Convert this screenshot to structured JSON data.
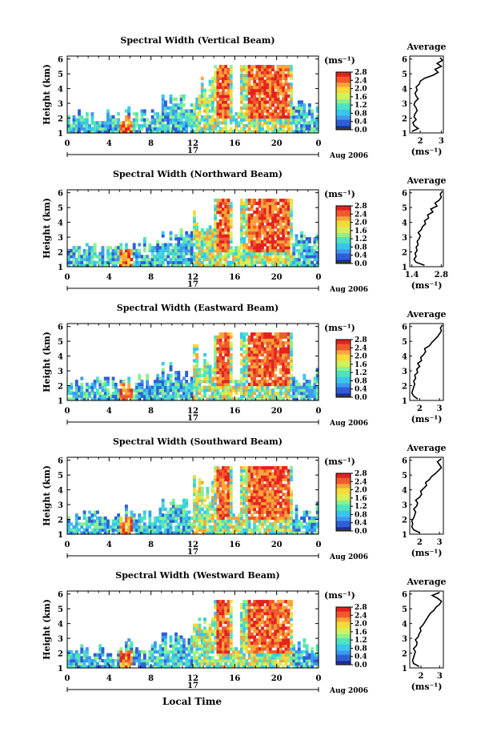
{
  "figure": {
    "xlabel": "Local Time",
    "date_label": "Aug 2006",
    "day_label": "17"
  },
  "colors": {
    "map": [
      "#3b3b3b",
      "#1c2d9c",
      "#2f5fd6",
      "#3f97f0",
      "#39c6ee",
      "#4ee3c0",
      "#8df08f",
      "#d3f15a",
      "#f6d93b",
      "#f7a63b",
      "#f05a2e",
      "#e32220"
    ]
  },
  "chart_data": [
    {
      "type": "heatmap",
      "title": "Spectral Width (Vertical Beam)",
      "ylabel": "Height (km)",
      "unit_label": "(ms⁻¹)",
      "x_ticks": [
        "0",
        "4",
        "8",
        "12",
        "16",
        "20",
        "0"
      ],
      "xlim": [
        0,
        24
      ],
      "y_ticks": [
        "1",
        "2",
        "3",
        "4",
        "5",
        "6"
      ],
      "ylim": [
        1,
        6.2
      ],
      "colorbar_ticks": [
        "0.0",
        "0.4",
        "0.8",
        "1.2",
        "1.6",
        "2.0",
        "2.4",
        "2.8"
      ],
      "colorbar_range": [
        0,
        2.8
      ],
      "profile": {
        "title": "Average",
        "x_ticks": [
          "2",
          "3"
        ],
        "xlim": [
          1.5,
          3.1
        ],
        "xlabel": "(ms⁻¹)",
        "heights": [
          1.1,
          1.3,
          1.5,
          1.7,
          1.9,
          2.1,
          2.3,
          2.5,
          2.7,
          2.9,
          3.1,
          3.3,
          3.5,
          3.7,
          3.9,
          4.1,
          4.3,
          4.5,
          4.7,
          4.9,
          5.1,
          5.3,
          5.5,
          5.7,
          5.9,
          6.1
        ],
        "values": [
          1.6,
          1.9,
          1.7,
          1.65,
          1.8,
          1.7,
          1.75,
          1.85,
          1.8,
          1.7,
          1.75,
          1.9,
          1.8,
          1.75,
          1.85,
          1.8,
          1.95,
          2.0,
          2.2,
          2.6,
          2.85,
          2.7,
          3.0,
          2.8,
          3.05,
          2.95
        ]
      }
    },
    {
      "type": "heatmap",
      "title": "Spectral Width (Northward Beam)",
      "ylabel": "Height (km)",
      "unit_label": "(ms⁻¹)",
      "x_ticks": [
        "0",
        "4",
        "8",
        "12",
        "16",
        "20",
        "0"
      ],
      "xlim": [
        0,
        24
      ],
      "y_ticks": [
        "1",
        "2",
        "3",
        "4",
        "5",
        "6"
      ],
      "ylim": [
        1,
        6.2
      ],
      "colorbar_ticks": [
        "0.0",
        "0.4",
        "0.8",
        "1.2",
        "1.6",
        "2.0",
        "2.4",
        "2.8"
      ],
      "colorbar_range": [
        0,
        2.8
      ],
      "profile": {
        "title": "Average",
        "x_ticks": [
          "1.4",
          "2.8"
        ],
        "xlim": [
          1.3,
          2.9
        ],
        "xlabel": "(ms⁻¹)",
        "heights": [
          1.1,
          1.3,
          1.5,
          1.7,
          1.9,
          2.1,
          2.3,
          2.5,
          2.7,
          2.9,
          3.1,
          3.3,
          3.5,
          3.7,
          3.9,
          4.1,
          4.3,
          4.5,
          4.7,
          4.9,
          5.1,
          5.3,
          5.5,
          5.7,
          5.9,
          6.1
        ],
        "values": [
          2.0,
          1.6,
          1.5,
          1.6,
          1.55,
          1.65,
          1.6,
          1.7,
          1.65,
          1.75,
          1.8,
          1.7,
          1.85,
          1.9,
          2.05,
          2.0,
          2.2,
          2.15,
          2.4,
          2.3,
          2.6,
          2.5,
          2.7,
          2.8,
          2.75,
          2.85
        ]
      }
    },
    {
      "type": "heatmap",
      "title": "Spectral Width (Eastward Beam)",
      "ylabel": "Height (km)",
      "unit_label": "(ms⁻¹)",
      "x_ticks": [
        "0",
        "4",
        "8",
        "12",
        "16",
        "20",
        "0"
      ],
      "xlim": [
        0,
        24
      ],
      "y_ticks": [
        "1",
        "2",
        "3",
        "4",
        "5",
        "6"
      ],
      "ylim": [
        1,
        6.2
      ],
      "colorbar_ticks": [
        "0.0",
        "0.4",
        "0.8",
        "1.2",
        "1.6",
        "2.0",
        "2.4",
        "2.8"
      ],
      "colorbar_range": [
        0,
        2.8
      ],
      "profile": {
        "title": "Average",
        "x_ticks": [
          "2",
          "3"
        ],
        "xlim": [
          1.5,
          3.2
        ],
        "xlabel": "(ms⁻¹)",
        "heights": [
          1.1,
          1.3,
          1.5,
          1.7,
          1.9,
          2.1,
          2.3,
          2.5,
          2.7,
          2.9,
          3.1,
          3.3,
          3.5,
          3.7,
          3.9,
          4.1,
          4.3,
          4.5,
          4.7,
          4.9,
          5.1,
          5.3,
          5.5,
          5.7,
          5.9,
          6.1
        ],
        "values": [
          1.9,
          1.7,
          1.6,
          1.65,
          1.7,
          1.75,
          1.7,
          1.8,
          1.75,
          1.9,
          1.85,
          2.0,
          1.9,
          2.1,
          2.05,
          2.2,
          2.3,
          2.25,
          2.5,
          2.6,
          2.75,
          2.9,
          3.0,
          3.1,
          3.05,
          3.15
        ]
      }
    },
    {
      "type": "heatmap",
      "title": "Spectral Width (Southward Beam)",
      "ylabel": "Height (km)",
      "unit_label": "(ms⁻¹)",
      "x_ticks": [
        "0",
        "4",
        "8",
        "12",
        "16",
        "20",
        "0"
      ],
      "xlim": [
        0,
        24
      ],
      "y_ticks": [
        "1",
        "2",
        "3",
        "4",
        "5",
        "6"
      ],
      "ylim": [
        1,
        6.2
      ],
      "colorbar_ticks": [
        "0.0",
        "0.4",
        "0.8",
        "1.2",
        "1.6",
        "2.0",
        "2.4",
        "2.8"
      ],
      "colorbar_range": [
        0,
        2.8
      ],
      "profile": {
        "title": "Average",
        "x_ticks": [
          "2",
          "3"
        ],
        "xlim": [
          1.5,
          3.2
        ],
        "xlabel": "(ms⁻¹)",
        "heights": [
          1.1,
          1.3,
          1.5,
          1.7,
          1.9,
          2.1,
          2.3,
          2.5,
          2.7,
          2.9,
          3.1,
          3.3,
          3.5,
          3.7,
          3.9,
          4.1,
          4.3,
          4.5,
          4.7,
          4.9,
          5.1,
          5.3,
          5.5,
          5.7,
          5.9,
          6.1
        ],
        "values": [
          2.0,
          1.7,
          1.6,
          1.65,
          1.6,
          1.7,
          1.75,
          1.8,
          1.7,
          1.85,
          1.9,
          1.8,
          2.0,
          2.1,
          2.05,
          2.2,
          2.35,
          2.3,
          2.5,
          2.6,
          2.8,
          2.95,
          3.1,
          3.0,
          2.9,
          3.1
        ]
      }
    },
    {
      "type": "heatmap",
      "title": "Spectral Width (Westward Beam)",
      "ylabel": "Height (km)",
      "unit_label": "(ms⁻¹)",
      "x_ticks": [
        "0",
        "4",
        "8",
        "12",
        "16",
        "20",
        "0"
      ],
      "xlim": [
        0,
        24
      ],
      "y_ticks": [
        "1",
        "2",
        "3",
        "4",
        "5",
        "6"
      ],
      "ylim": [
        1,
        6.2
      ],
      "colorbar_ticks": [
        "0.0",
        "0.4",
        "0.8",
        "1.2",
        "1.6",
        "2.0",
        "2.4",
        "2.8"
      ],
      "colorbar_range": [
        0,
        2.8
      ],
      "profile": {
        "title": "Average",
        "x_ticks": [
          "2",
          "3"
        ],
        "xlim": [
          1.4,
          3.2
        ],
        "xlabel": "(ms⁻¹)",
        "heights": [
          1.1,
          1.3,
          1.5,
          1.7,
          1.9,
          2.1,
          2.3,
          2.5,
          2.7,
          2.9,
          3.1,
          3.3,
          3.5,
          3.7,
          3.9,
          4.1,
          4.3,
          4.5,
          4.7,
          4.9,
          5.1,
          5.3,
          5.5,
          5.7,
          5.9,
          6.1
        ],
        "values": [
          1.9,
          1.6,
          1.55,
          1.6,
          1.65,
          1.7,
          1.6,
          1.75,
          1.8,
          1.7,
          1.85,
          1.9,
          2.0,
          1.95,
          2.1,
          2.2,
          2.3,
          2.4,
          2.5,
          2.7,
          2.8,
          3.0,
          3.1,
          2.9,
          2.6,
          3.0
        ]
      }
    }
  ]
}
